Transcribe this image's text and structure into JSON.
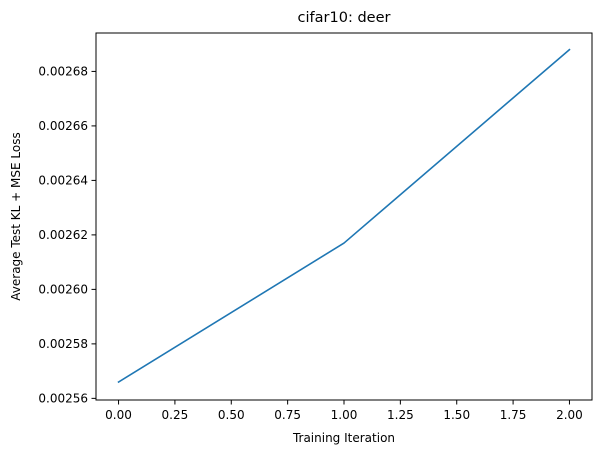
{
  "chart_data": {
    "type": "line",
    "title": "cifar10: deer",
    "xlabel": "Training Iteration",
    "ylabel": "Average Test KL + MSE Loss",
    "x": [
      0,
      1,
      2
    ],
    "series": [
      {
        "values": [
          0.002566,
          0.002617,
          0.002688
        ],
        "color": "#1f77b4"
      }
    ],
    "xlim": [
      -0.1,
      2.1
    ],
    "ylim": [
      0.0025594,
      0.0026941
    ],
    "xticks": [
      0.0,
      0.25,
      0.5,
      0.75,
      1.0,
      1.25,
      1.5,
      1.75,
      2.0
    ],
    "xtick_labels": [
      "0.00",
      "0.25",
      "0.50",
      "0.75",
      "1.00",
      "1.25",
      "1.50",
      "1.75",
      "2.00"
    ],
    "yticks": [
      0.00256,
      0.00258,
      0.0026,
      0.00262,
      0.00264,
      0.00266,
      0.00268
    ],
    "ytick_labels": [
      "0.00256",
      "0.00258",
      "0.00260",
      "0.00262",
      "0.00264",
      "0.00266",
      "0.00268"
    ],
    "grid": false,
    "legend": "none"
  }
}
